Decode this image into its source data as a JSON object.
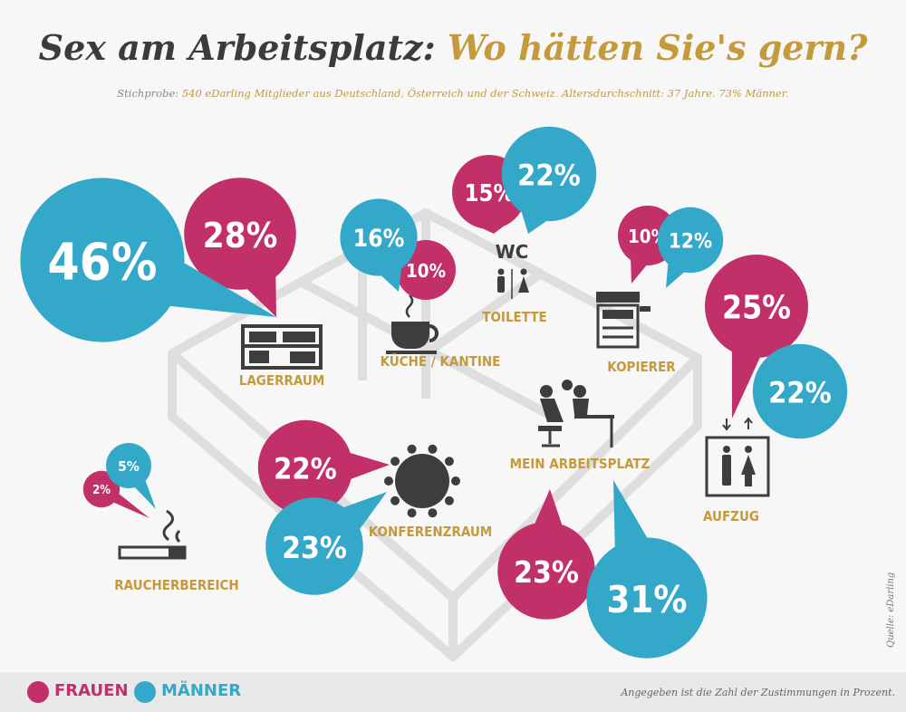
{
  "title": {
    "part1": "Sex am Arbeitsplatz:",
    "part2": "Wo hätten Sie's gern?"
  },
  "subtitle": {
    "label": "Stichprobe:",
    "text": "540 eDarling Mitglieder aus Deutschland, Österreich und der Schweiz. Altersdurchschnitt: 37 Jahre. 73% Männer."
  },
  "legend": {
    "frauen": "FRAUEN",
    "maenner": "MÄNNER"
  },
  "note": "Angegeben ist die Zahl der Zustimmungen in Prozent.",
  "source": "Quelle: eDarling",
  "colors": {
    "frauen": "#c2306a",
    "maenner": "#33a8c9",
    "label": "#c49a3c",
    "icon": "#3d3d3d"
  },
  "chart_data": {
    "type": "bar",
    "categories": [
      "Lagerraum",
      "Küche / Kantine",
      "Toilette",
      "Kopierer",
      "Aufzug",
      "Mein Arbeitsplatz",
      "Konferenzraum",
      "Raucherbereich"
    ],
    "category_labels": [
      "LAGERRAUM",
      "KÜCHE / KANTINE",
      "TOILETTE",
      "KOPIERER",
      "AUFZUG",
      "MEIN ARBEITSPLATZ",
      "KONFERENZRAUM",
      "RAUCHERBEREICH"
    ],
    "series": [
      {
        "name": "FRAUEN",
        "values": [
          28,
          10,
          15,
          10,
          25,
          23,
          22,
          2
        ]
      },
      {
        "name": "MÄNNER",
        "values": [
          46,
          16,
          22,
          12,
          22,
          31,
          23,
          5
        ]
      }
    ],
    "unit": "%"
  },
  "icons": [
    "shelf-icon",
    "coffee-cup-icon",
    "wc-icon",
    "copier-icon",
    "elevator-icon",
    "desk-couple-icon",
    "conference-table-icon",
    "cigarette-icon"
  ]
}
